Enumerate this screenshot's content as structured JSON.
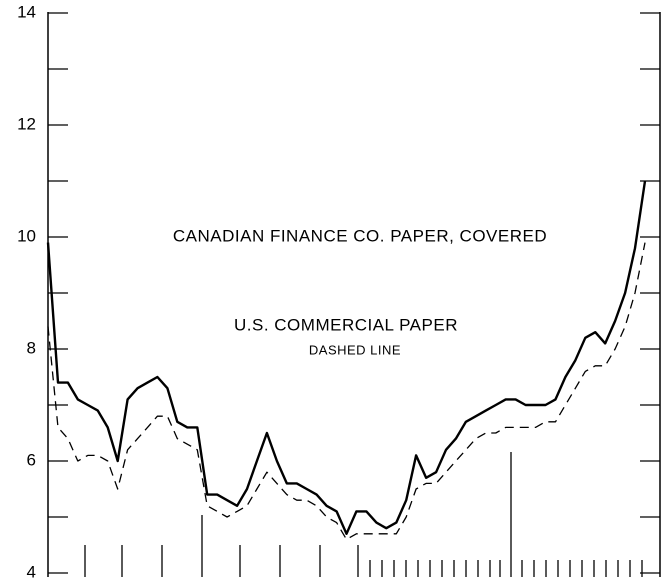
{
  "chart_data": {
    "type": "line",
    "series": [
      {
        "name": "CANADIAN FINANCE CO. PAPER, COVERED",
        "color": "#000000",
        "style": "solid",
        "values": [
          9.9,
          7.4,
          7.4,
          7.1,
          7.0,
          6.9,
          6.6,
          6.0,
          7.1,
          7.3,
          7.4,
          7.5,
          7.3,
          6.7,
          6.6,
          6.6,
          5.4,
          5.4,
          5.3,
          5.2,
          5.5,
          6.0,
          6.5,
          6.0,
          5.6,
          5.6,
          5.5,
          5.4,
          5.2,
          5.1,
          4.7,
          5.1,
          5.1,
          4.9,
          4.8,
          4.9,
          5.3,
          6.1,
          5.7,
          5.8,
          6.2,
          6.4,
          6.7,
          6.8,
          6.9,
          7.0,
          7.1,
          7.1,
          7.0,
          7.0,
          7.0,
          7.1,
          7.5,
          7.8,
          8.2,
          8.3,
          8.1,
          8.5,
          9.0,
          9.8,
          11.0
        ]
      },
      {
        "name": "U.S. COMMERCIAL PAPER",
        "color": "#000000",
        "style": "dashed",
        "values": [
          8.4,
          6.6,
          6.4,
          6.0,
          6.1,
          6.1,
          6.0,
          5.5,
          6.2,
          6.4,
          6.6,
          6.8,
          6.8,
          6.4,
          6.3,
          6.2,
          5.2,
          5.1,
          5.0,
          5.1,
          5.2,
          5.5,
          5.8,
          5.6,
          5.4,
          5.3,
          5.3,
          5.2,
          5.0,
          4.9,
          4.6,
          4.7,
          4.7,
          4.7,
          4.7,
          4.7,
          5.0,
          5.5,
          5.6,
          5.6,
          5.8,
          6.0,
          6.2,
          6.4,
          6.5,
          6.5,
          6.6,
          6.6,
          6.6,
          6.6,
          6.7,
          6.7,
          7.0,
          7.3,
          7.6,
          7.7,
          7.7,
          8.0,
          8.4,
          9.0,
          9.9
        ]
      }
    ],
    "annotations": [
      "DASHED LINE"
    ],
    "ylim": [
      4,
      14
    ],
    "yticks": [
      4,
      6,
      8,
      10,
      12,
      14
    ],
    "minor_yticks": [
      5,
      7,
      9,
      11,
      13
    ],
    "grid": false
  }
}
